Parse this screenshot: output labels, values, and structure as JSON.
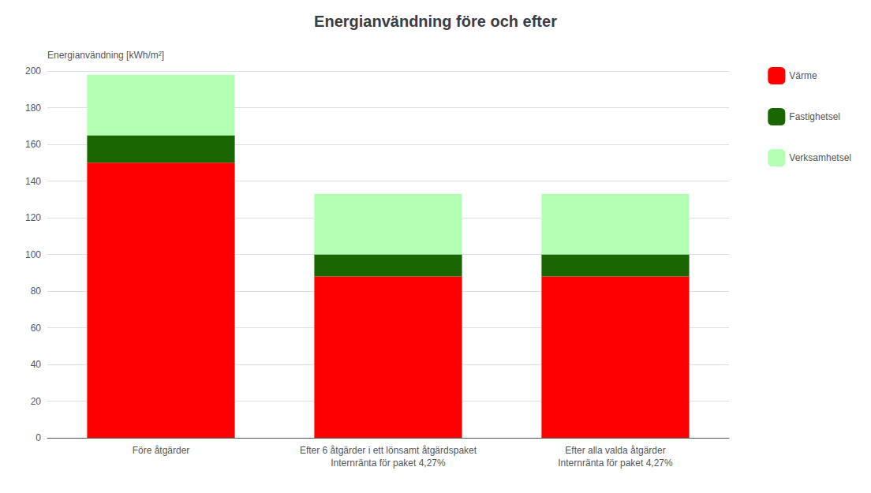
{
  "chart_data": {
    "type": "bar",
    "title": "Energianvändning före och efter",
    "ylabel": "Energianvändning [kWh/m²]",
    "categories": [
      "Före åtgärder",
      "Efter 6 åtgärder i ett lönsamt åtgärdspaket\nInternränta för paket 4,27%",
      "Efter alla valda åtgärder\nInternränta för paket 4,27%"
    ],
    "series": [
      {
        "name": "Värme",
        "color": "#ff0000",
        "values": [
          150,
          88,
          88
        ]
      },
      {
        "name": "Fastighetsel",
        "color": "#1a6600",
        "values": [
          15,
          12,
          12
        ]
      },
      {
        "name": "Verksamhetsel",
        "color": "#b3ffb3",
        "values": [
          33,
          33,
          33
        ]
      }
    ],
    "stacked": true,
    "ylim": [
      0,
      200
    ],
    "yticks": [
      0,
      20,
      40,
      60,
      80,
      100,
      120,
      140,
      160,
      180,
      200
    ],
    "grid": true,
    "legend": "right"
  }
}
